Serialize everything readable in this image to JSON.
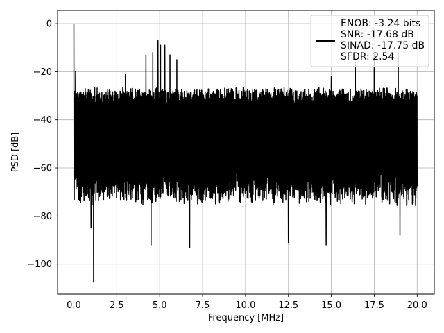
{
  "chart_data": {
    "type": "line",
    "title": "",
    "xlabel": "Frequency [MHz]",
    "ylabel": "PSD [dB]",
    "xlim": [
      -0.95,
      21.0
    ],
    "ylim": [
      -112.5,
      5.5
    ],
    "xticks": [
      0.0,
      2.5,
      5.0,
      7.5,
      10.0,
      12.5,
      15.0,
      17.5,
      20.0
    ],
    "xtick_labels": [
      "0.0",
      "2.5",
      "5.0",
      "7.5",
      "10.0",
      "12.5",
      "15.0",
      "17.5",
      "20.0"
    ],
    "yticks": [
      0,
      -20,
      -40,
      -60,
      -80,
      -100
    ],
    "ytick_labels": [
      "0",
      "−20",
      "−40",
      "−60",
      "−80",
      "−100"
    ],
    "grid": true,
    "legend_position": "top-right",
    "legend_entries": [
      "ENOB: -3.24 bits",
      "SNR: -17.68 dB",
      "SINAD: -17.75 dB",
      "SFDR: 2.54"
    ],
    "series": [
      {
        "color": "#000000",
        "freq_range_mhz": [
          0.0,
          20.0
        ],
        "noise_floor_band_db": [
          -70,
          -30
        ],
        "dc_peak": {
          "x": 0.0,
          "y": 0.0
        },
        "notable_peaks": [
          {
            "x": 0.1,
            "y": -20
          },
          {
            "x": 3.0,
            "y": -21
          },
          {
            "x": 4.2,
            "y": -13
          },
          {
            "x": 4.6,
            "y": -12
          },
          {
            "x": 4.9,
            "y": -7
          },
          {
            "x": 5.05,
            "y": -9
          },
          {
            "x": 5.3,
            "y": -9
          },
          {
            "x": 5.6,
            "y": -13
          },
          {
            "x": 6.0,
            "y": -15
          },
          {
            "x": 15.0,
            "y": -22
          },
          {
            "x": 16.4,
            "y": -16
          },
          {
            "x": 17.5,
            "y": -13
          },
          {
            "x": 18.9,
            "y": -12
          }
        ],
        "notable_dips": [
          {
            "x": 1.15,
            "y": -107.5
          },
          {
            "x": 1.0,
            "y": -85
          },
          {
            "x": 4.5,
            "y": -92
          },
          {
            "x": 6.75,
            "y": -93
          },
          {
            "x": 12.5,
            "y": -91
          },
          {
            "x": 14.7,
            "y": -92
          },
          {
            "x": 19.0,
            "y": -88
          }
        ]
      }
    ]
  }
}
